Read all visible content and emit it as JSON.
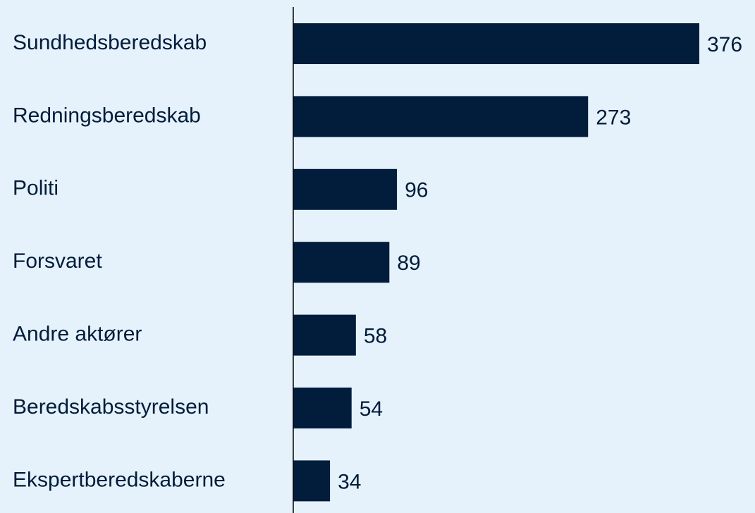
{
  "chart_data": {
    "type": "hbar",
    "categories": [
      "Sundhedsberedskab",
      "Redningsberedskab",
      "Politi",
      "Forsvaret",
      "Andre aktører",
      "Beredskabsstyrelsen",
      "Ekspertberedskaberne"
    ],
    "values": [
      376,
      273,
      96,
      89,
      58,
      54,
      34
    ],
    "color": "#021c3b"
  }
}
